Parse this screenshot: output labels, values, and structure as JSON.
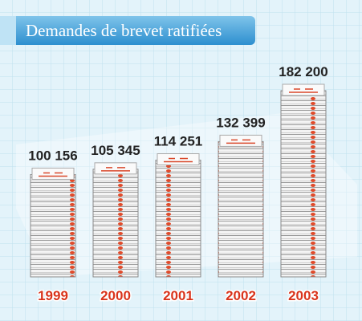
{
  "chart_data": {
    "type": "bar",
    "title": "Demandes de brevet ratifiées",
    "categories": [
      "1999",
      "2000",
      "2001",
      "2002",
      "2003"
    ],
    "values": [
      100156,
      105345,
      114251,
      132399,
      182200
    ],
    "value_labels": [
      "100 156",
      "105 345",
      "114 251",
      "132 399",
      "182 200"
    ],
    "color": "#d9482b"
  }
}
